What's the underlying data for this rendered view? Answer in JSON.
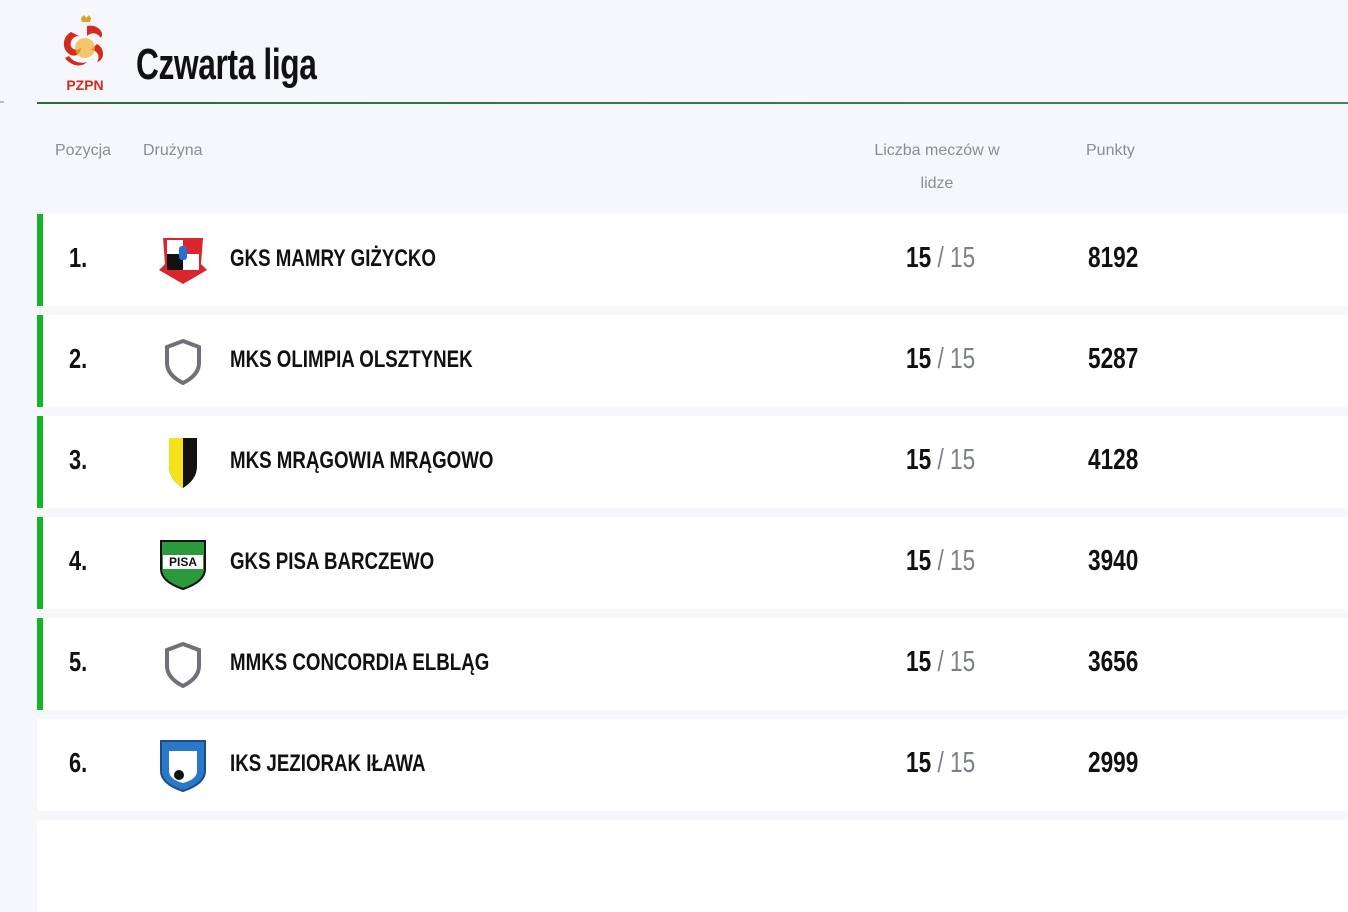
{
  "header": {
    "logo_text": "PZPN",
    "title": "Czwarta liga"
  },
  "columns": {
    "position": "Pozycja",
    "team": "Drużyna",
    "matches": "Liczba meczów w lidze",
    "points": "Punkty"
  },
  "colors": {
    "accent_bar": "#14b52a",
    "header_rule": "#2d6b3f"
  },
  "rows": [
    {
      "position": "1.",
      "team": "GKS MAMRY GIŻYCKO",
      "crest": "gks-mamry-crest",
      "played": "15",
      "separator": "/",
      "total": "15",
      "points": "8192",
      "highlighted": true
    },
    {
      "position": "2.",
      "team": "MKS OLIMPIA OLSZTYNEK",
      "crest": "default-shield-icon",
      "played": "15",
      "separator": "/",
      "total": "15",
      "points": "5287",
      "highlighted": true
    },
    {
      "position": "3.",
      "team": "MKS MRĄGOWIA MRĄGOWO",
      "crest": "mragowia-crest",
      "played": "15",
      "separator": "/",
      "total": "15",
      "points": "4128",
      "highlighted": true
    },
    {
      "position": "4.",
      "team": "GKS PISA BARCZEWO",
      "crest": "pisa-crest",
      "played": "15",
      "separator": "/",
      "total": "15",
      "points": "3940",
      "highlighted": true
    },
    {
      "position": "5.",
      "team": "MMKS CONCORDIA ELBLĄG",
      "crest": "default-shield-icon",
      "played": "15",
      "separator": "/",
      "total": "15",
      "points": "3656",
      "highlighted": true
    },
    {
      "position": "6.",
      "team": "IKS JEZIORAK IŁAWA",
      "crest": "jeziorak-crest",
      "played": "15",
      "separator": "/",
      "total": "15",
      "points": "2999",
      "highlighted": false
    }
  ]
}
